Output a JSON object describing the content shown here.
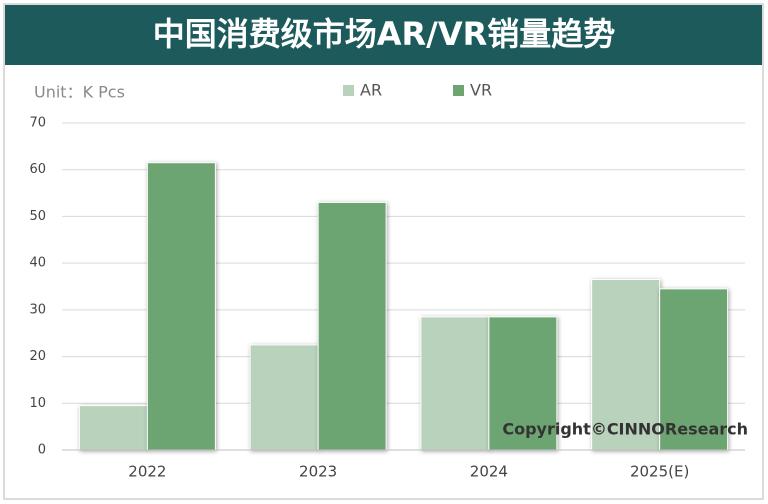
{
  "chart_data": {
    "type": "bar",
    "title": "中国消费级市场AR/VR销量趋势",
    "unit_label": "Unit：K Pcs",
    "annotation": "Copyright©CINNOResearch",
    "categories": [
      "2022",
      "2023",
      "2024",
      "2025(E)"
    ],
    "series": [
      {
        "name": "AR",
        "color": "#b8d2bb",
        "values": [
          9.5,
          22.5,
          28.5,
          36.5
        ]
      },
      {
        "name": "VR",
        "color": "#6da572",
        "values": [
          61.5,
          53,
          28.5,
          34.5
        ]
      }
    ],
    "ylim": [
      0,
      70
    ],
    "yticks": [
      0,
      10,
      20,
      30,
      40,
      50,
      60,
      70
    ],
    "grid": true
  }
}
